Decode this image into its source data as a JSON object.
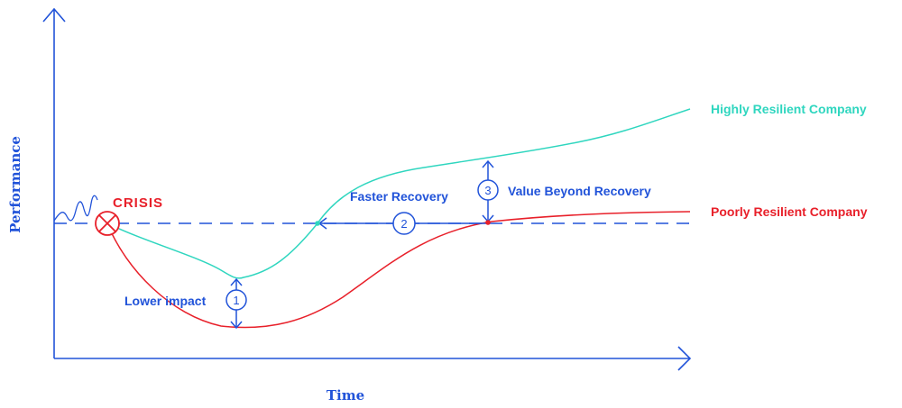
{
  "diagram": {
    "axes": {
      "y_label": "Performance",
      "x_label": "Time"
    },
    "crisis_label": "CRISIS",
    "series": [
      {
        "key": "high",
        "name": "Highly Resilient Company",
        "color": "#2fd6bf"
      },
      {
        "key": "poor",
        "name": "Poorly Resilient Company",
        "color": "#e8202a"
      }
    ],
    "annotations": [
      {
        "number": "1",
        "label": "Lower impact"
      },
      {
        "number": "2",
        "label": "Faster Recovery"
      },
      {
        "number": "3",
        "label": "Value Beyond Recovery"
      }
    ],
    "colors": {
      "axis_blue": "#2153d9",
      "crisis_red": "#e8202a",
      "highly_teal": "#2fd6bf"
    }
  }
}
